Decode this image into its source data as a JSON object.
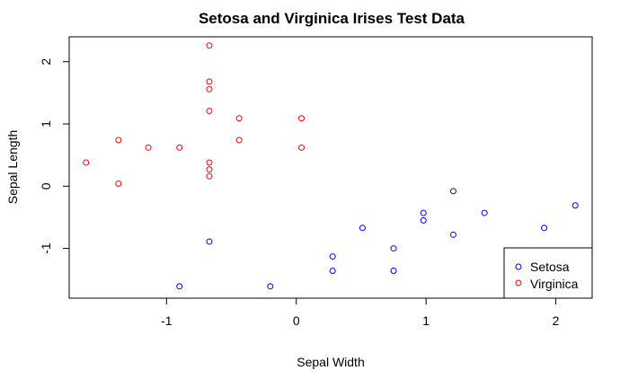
{
  "chart_data": {
    "type": "scatter",
    "title": "Setosa and Virginica Irises Test Data",
    "xlabel": "Sepal Width",
    "ylabel": "Sepal Length",
    "xlim": [
      -1.75,
      2.28
    ],
    "ylim": [
      -1.8,
      2.4
    ],
    "x_ticks": [
      -1,
      0,
      1,
      2
    ],
    "y_ticks": [
      -1,
      0,
      1,
      2
    ],
    "legend_position": "bottom-right",
    "series": [
      {
        "name": "Setosa",
        "color": "#0000ff",
        "points": [
          [
            -0.67,
            -0.89
          ],
          [
            -0.9,
            -1.61
          ],
          [
            -0.2,
            -1.61
          ],
          [
            0.28,
            -1.13
          ],
          [
            0.28,
            -1.36
          ],
          [
            0.51,
            -0.67
          ],
          [
            0.75,
            -1.0
          ],
          [
            0.75,
            -1.36
          ],
          [
            0.98,
            -0.43
          ],
          [
            0.98,
            -0.55
          ],
          [
            1.21,
            -0.08
          ],
          [
            1.21,
            -0.78
          ],
          [
            1.45,
            -0.43
          ],
          [
            1.91,
            -0.67
          ],
          [
            2.15,
            -0.31
          ]
        ]
      },
      {
        "name": "Virginica",
        "color": "#ff0000",
        "points": [
          [
            -1.62,
            0.38
          ],
          [
            -1.37,
            0.74
          ],
          [
            -1.37,
            0.04
          ],
          [
            -1.14,
            0.62
          ],
          [
            -0.9,
            0.62
          ],
          [
            -0.67,
            2.26
          ],
          [
            -0.67,
            1.68
          ],
          [
            -0.67,
            1.56
          ],
          [
            -0.67,
            1.21
          ],
          [
            -0.67,
            0.38
          ],
          [
            -0.67,
            0.27
          ],
          [
            -0.67,
            0.16
          ],
          [
            -0.44,
            1.09
          ],
          [
            -0.44,
            0.74
          ],
          [
            0.04,
            1.09
          ],
          [
            0.04,
            0.62
          ]
        ]
      }
    ]
  }
}
